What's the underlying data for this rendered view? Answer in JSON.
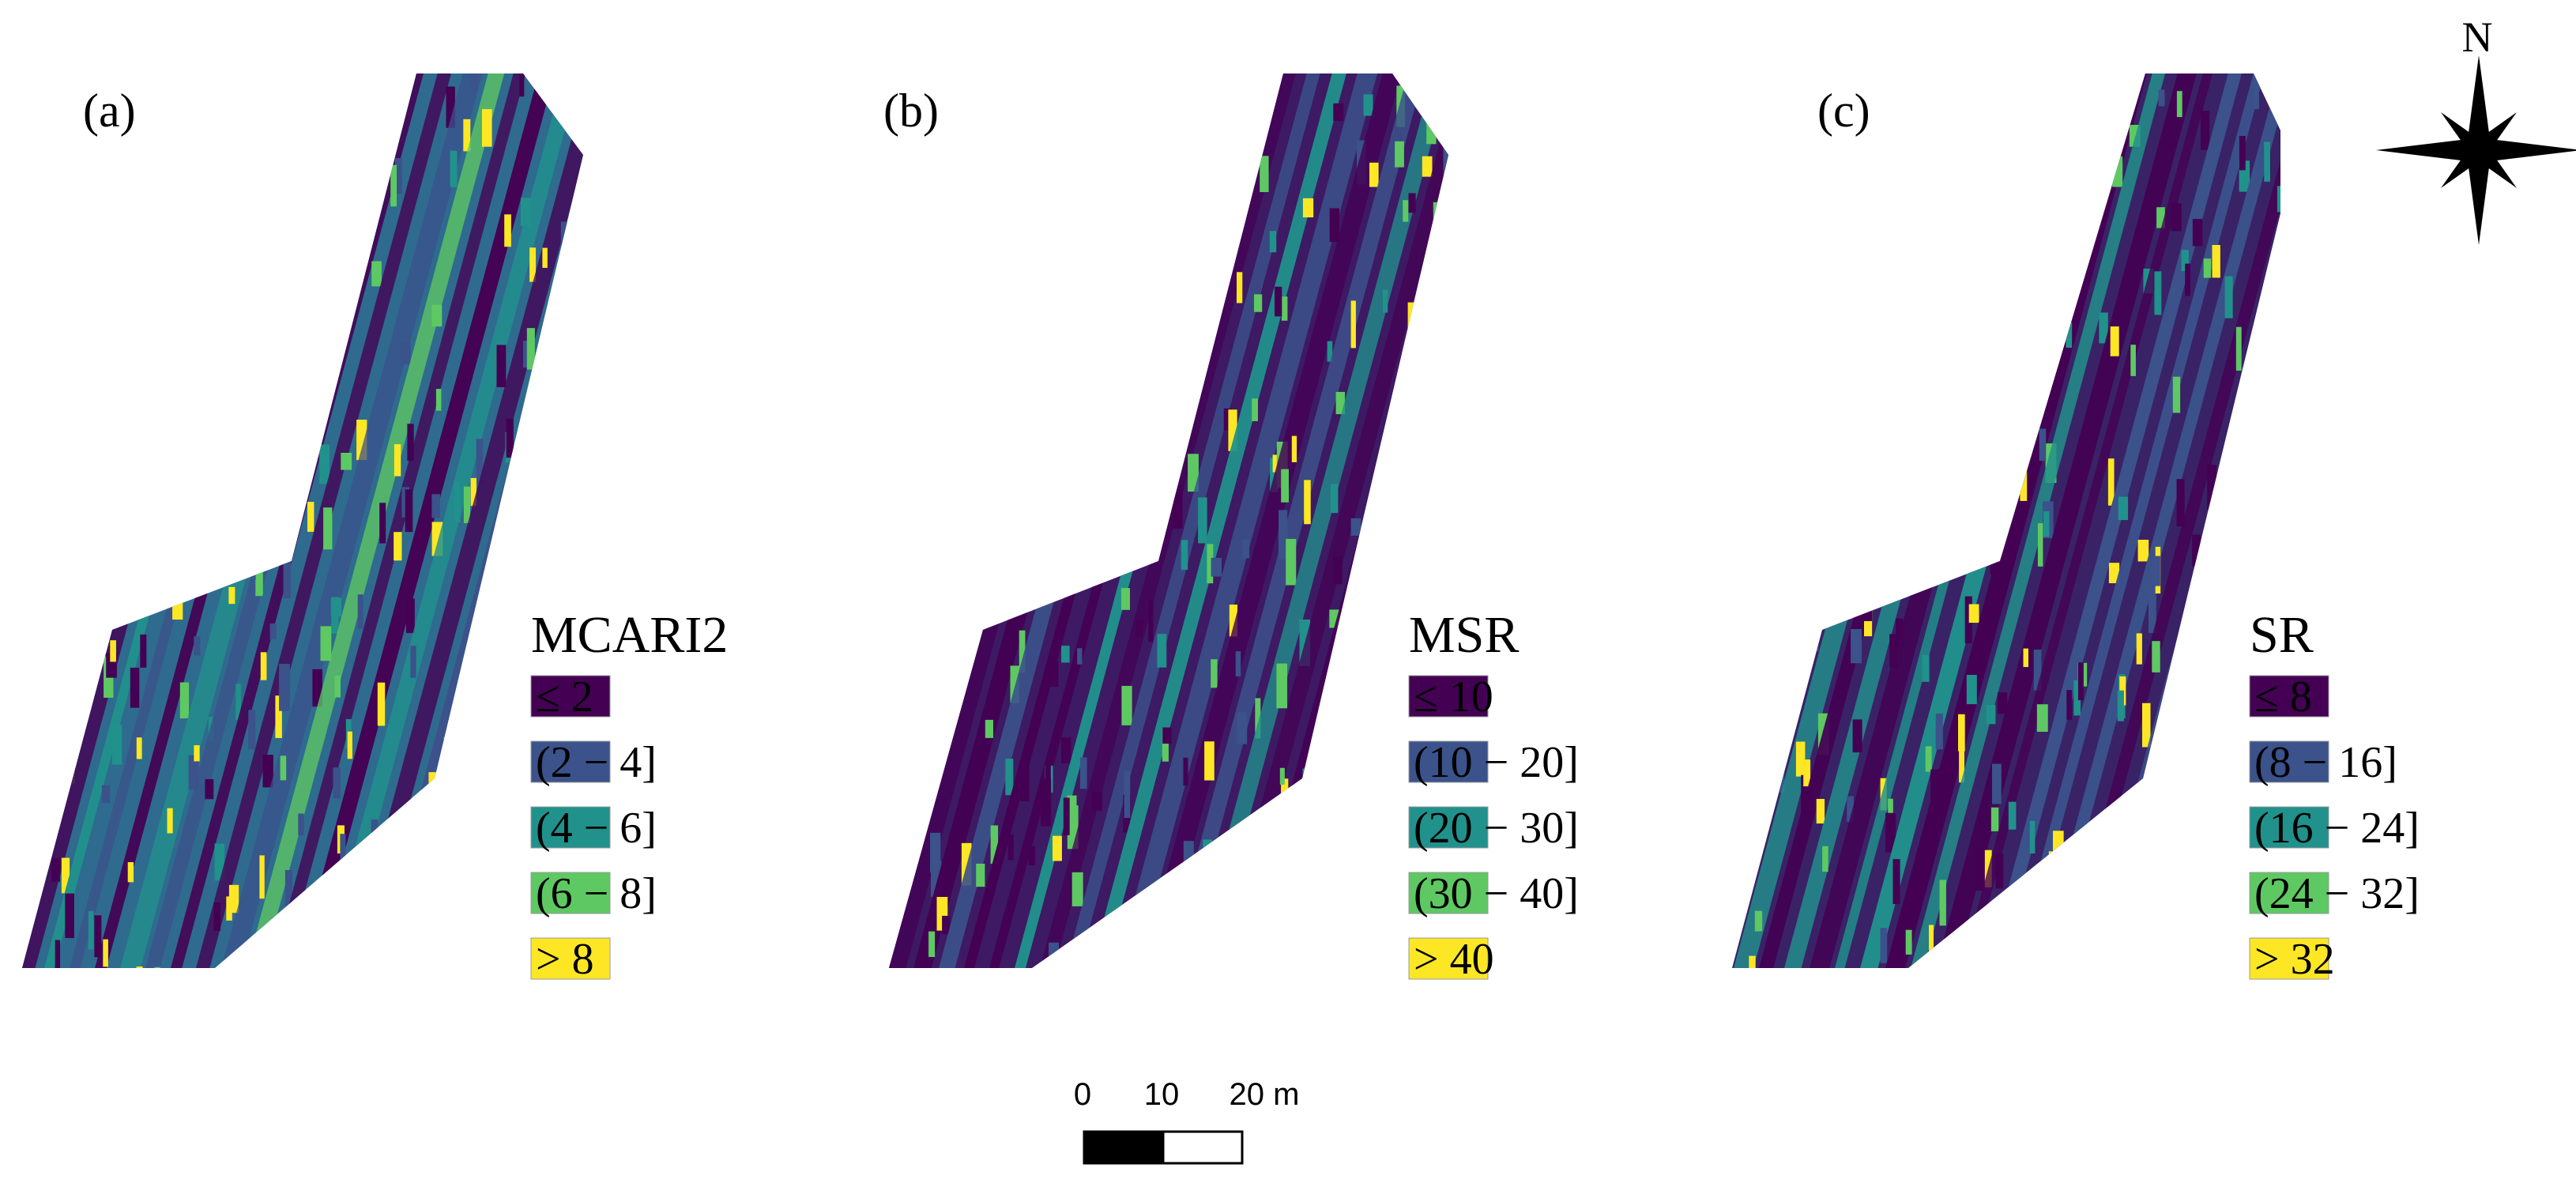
{
  "panels": [
    {
      "label": "(a)",
      "legend_title": "MCARI2",
      "classes": [
        "≤ 2",
        "(2 − 4]",
        "(4 − 6]",
        "(6 − 8]",
        "> 8"
      ],
      "colors": [
        "#440154",
        "#3b528b",
        "#21918c",
        "#5ec962",
        "#fde725"
      ]
    },
    {
      "label": "(b)",
      "legend_title": "MSR",
      "classes": [
        "≤ 10",
        "(10 − 20]",
        "(20 − 30]",
        "(30 − 40]",
        "> 40"
      ],
      "colors": [
        "#440154",
        "#3b528b",
        "#21918c",
        "#5ec962",
        "#fde725"
      ]
    },
    {
      "label": "(c)",
      "legend_title": "SR",
      "classes": [
        "≤ 8",
        "(8 − 16]",
        "(16 − 24]",
        "(24 − 32]",
        "> 32"
      ],
      "colors": [
        "#440154",
        "#3b528b",
        "#21918c",
        "#5ec962",
        "#fde725"
      ]
    }
  ],
  "north_arrow": {
    "label": "N",
    "icon": "compass-rose-icon"
  },
  "scale_bar": {
    "ticks": [
      "0",
      "10",
      "20 m"
    ]
  }
}
